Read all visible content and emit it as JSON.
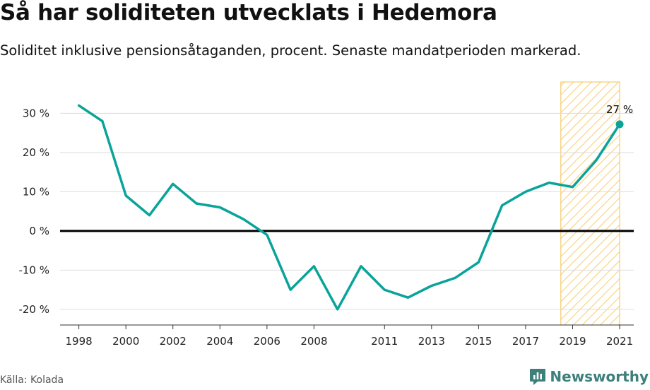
{
  "title": "Så har soliditeten utvecklats i Hedemora",
  "subtitle": "Soliditet inklusive pensionsåtaganden, procent. Senaste mandatperioden markerad.",
  "source": "Källa: Kolada",
  "brand": "Newsworthy",
  "colors": {
    "line": "#0aa39a",
    "highlight": "#f5c04a",
    "zero": "#000000",
    "grid": "#dddddd"
  },
  "chart_data": {
    "type": "line",
    "title": "Så har soliditeten utvecklats i Hedemora",
    "xlabel": "",
    "ylabel": "",
    "ylim": [
      -24,
      38
    ],
    "xlim": [
      1997.2,
      2021.6
    ],
    "grid": true,
    "y_ticks": [
      {
        "value": 30,
        "label": "30 %"
      },
      {
        "value": 20,
        "label": "20 %"
      },
      {
        "value": 10,
        "label": "10 %"
      },
      {
        "value": 0,
        "label": "0 %"
      },
      {
        "value": -10,
        "label": "-10 %"
      },
      {
        "value": -20,
        "label": "-20 %"
      }
    ],
    "x_ticks": [
      {
        "value": 1998,
        "label": "1998"
      },
      {
        "value": 2000,
        "label": "2000"
      },
      {
        "value": 2002,
        "label": "2002"
      },
      {
        "value": 2004,
        "label": "2004"
      },
      {
        "value": 2006,
        "label": "2006"
      },
      {
        "value": 2008,
        "label": "2008"
      },
      {
        "value": 2011,
        "label": "2011"
      },
      {
        "value": 2013,
        "label": "2013"
      },
      {
        "value": 2015,
        "label": "2015"
      },
      {
        "value": 2017,
        "label": "2017"
      },
      {
        "value": 2019,
        "label": "2019"
      },
      {
        "value": 2021,
        "label": "2021"
      }
    ],
    "highlight_range": [
      2018.5,
      2021
    ],
    "series": [
      {
        "x": [
          1998,
          1999,
          2000,
          2001,
          2002,
          2003,
          2004,
          2005,
          2006,
          2007,
          2008,
          2009,
          2010,
          2011,
          2012,
          2013,
          2014,
          2015,
          2016,
          2017,
          2018,
          2019,
          2020,
          2021
        ],
        "values": [
          32,
          28,
          9,
          4,
          12,
          7,
          6,
          3,
          -1,
          -15,
          -9,
          -20,
          -9,
          -15,
          -17,
          -14,
          -12,
          -8,
          6.5,
          10,
          12.3,
          11.2,
          18,
          27.2
        ]
      }
    ],
    "annotations": [
      {
        "x": 2021,
        "y": 27.2,
        "text": "27 %"
      }
    ]
  }
}
